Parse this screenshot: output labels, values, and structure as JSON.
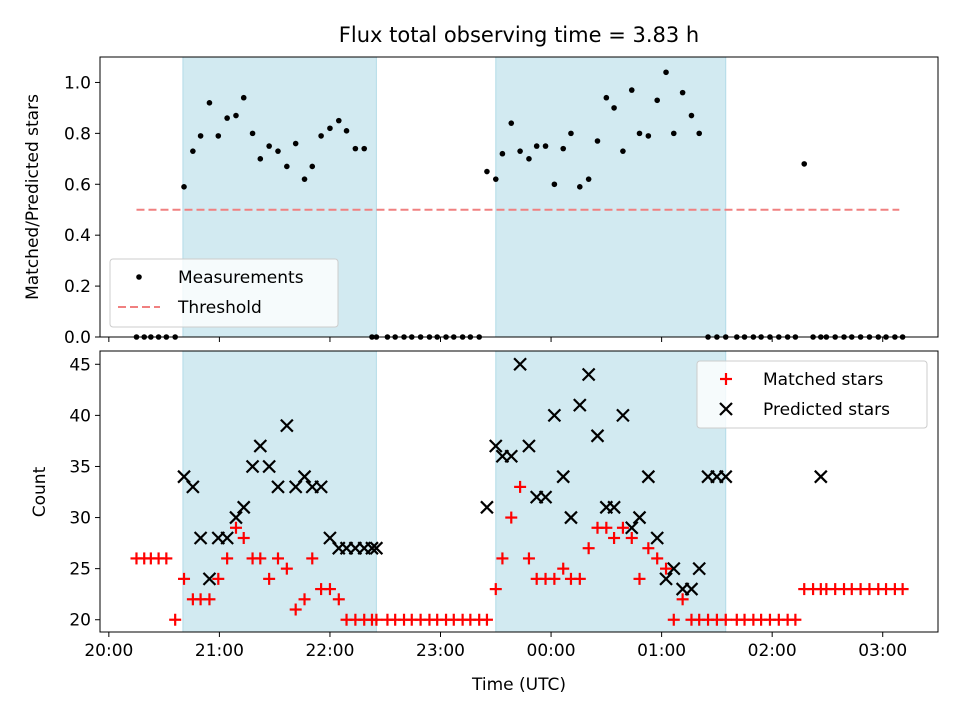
{
  "chart_data": {
    "title": "Flux total observing time = 3.83 h",
    "xlabel": "Time (UTC)",
    "x_tick_labels": [
      "20:00",
      "21:00",
      "22:00",
      "23:00",
      "00:00",
      "01:00",
      "02:00",
      "03:00"
    ],
    "x_tick_hours": [
      20,
      21,
      22,
      23,
      24,
      25,
      26,
      27
    ],
    "xlim_hours": [
      19.92,
      27.5
    ],
    "shaded_intervals_hours": [
      [
        20.67,
        22.42
      ],
      [
        23.5,
        25.58
      ]
    ],
    "shade_color": "#add8e6",
    "panels": [
      {
        "type": "scatter",
        "ylabel": "Matched/Predicted stars",
        "ylim": [
          0,
          1.1
        ],
        "yticks": [
          0.0,
          0.2,
          0.4,
          0.6,
          0.8,
          1.0
        ],
        "ytick_labels": [
          "0.0",
          "0.2",
          "0.4",
          "0.6",
          "0.8",
          "1.0"
        ],
        "legend": {
          "position": "lower-left",
          "entries": [
            {
              "label": "Measurements",
              "marker": "dot",
              "color": "#000000"
            },
            {
              "label": "Threshold",
              "marker": "dashed-line",
              "color": "#f08080"
            }
          ]
        },
        "threshold": {
          "value": 0.5,
          "x_range_hours": [
            20.25,
            27.15
          ],
          "color": "#f08080"
        },
        "series": [
          {
            "name": "Measurements",
            "color": "#000000",
            "x_hours": [
              20.25,
              20.32,
              20.38,
              20.45,
              20.52,
              20.6,
              20.68,
              20.76,
              20.83,
              20.91,
              20.99,
              21.07,
              21.15,
              21.22,
              21.3,
              21.37,
              21.45,
              21.53,
              21.61,
              21.69,
              21.77,
              21.84,
              21.92,
              22.0,
              22.08,
              22.15,
              22.23,
              22.31,
              22.38,
              22.42,
              22.52,
              22.59,
              22.67,
              22.74,
              22.82,
              22.9,
              22.97,
              23.05,
              23.12,
              23.2,
              23.27,
              23.35,
              23.42,
              23.5,
              23.56,
              23.64,
              23.72,
              23.8,
              23.87,
              23.95,
              24.03,
              24.11,
              24.18,
              24.26,
              24.34,
              24.42,
              24.5,
              24.57,
              24.65,
              24.73,
              24.8,
              24.88,
              24.96,
              25.04,
              25.11,
              25.19,
              25.27,
              25.34,
              25.42,
              25.5,
              25.58,
              25.68,
              25.75,
              25.83,
              25.9,
              25.98,
              26.06,
              26.14,
              26.21,
              26.29,
              26.37,
              26.44,
              26.49,
              26.57,
              26.65,
              26.72,
              26.8,
              26.88,
              26.96,
              27.03,
              27.11,
              27.18
            ],
            "y": [
              0,
              0,
              0,
              0,
              0,
              0,
              0.59,
              0.73,
              0.79,
              0.92,
              0.79,
              0.86,
              0.87,
              0.94,
              0.8,
              0.7,
              0.75,
              0.73,
              0.67,
              0.76,
              0.62,
              0.67,
              0.79,
              0.82,
              0.85,
              0.81,
              0.74,
              0.74,
              0,
              0,
              0,
              0,
              0,
              0,
              0,
              0,
              0,
              0,
              0,
              0,
              0,
              0,
              0.65,
              0.62,
              0.72,
              0.84,
              0.73,
              0.7,
              0.75,
              0.75,
              0.6,
              0.74,
              0.8,
              0.59,
              0.62,
              0.77,
              0.94,
              0.9,
              0.73,
              0.97,
              0.8,
              0.79,
              0.93,
              1.04,
              0.8,
              0.96,
              0.87,
              0.8,
              0,
              0,
              0,
              0,
              0,
              0,
              0,
              0,
              0,
              0,
              0,
              0.68,
              0,
              0,
              0,
              0,
              0,
              0,
              0,
              0,
              0,
              0,
              0,
              0
            ]
          }
        ]
      },
      {
        "type": "scatter",
        "ylabel": "Count",
        "ylim": [
          18.8,
          46.3
        ],
        "yticks": [
          20,
          25,
          30,
          35,
          40,
          45
        ],
        "ytick_labels": [
          "20",
          "25",
          "30",
          "35",
          "40",
          "45"
        ],
        "legend": {
          "position": "upper-right",
          "entries": [
            {
              "label": "Matched stars",
              "marker": "plus",
              "color": "#ff0000"
            },
            {
              "label": "Predicted stars",
              "marker": "x",
              "color": "#000000"
            }
          ]
        },
        "series": [
          {
            "name": "Matched stars",
            "marker": "plus",
            "color": "#ff0000",
            "x_hours": [
              20.25,
              20.32,
              20.38,
              20.45,
              20.52,
              20.6,
              20.68,
              20.76,
              20.83,
              20.91,
              20.99,
              21.07,
              21.15,
              21.22,
              21.3,
              21.37,
              21.45,
              21.53,
              21.61,
              21.69,
              21.77,
              21.84,
              21.92,
              22.0,
              22.08,
              22.15,
              22.23,
              22.31,
              22.38,
              22.42,
              22.52,
              22.59,
              22.67,
              22.74,
              22.82,
              22.9,
              22.97,
              23.05,
              23.12,
              23.2,
              23.27,
              23.35,
              23.42,
              23.5,
              23.56,
              23.64,
              23.72,
              23.8,
              23.87,
              23.95,
              24.03,
              24.11,
              24.18,
              24.26,
              24.34,
              24.42,
              24.5,
              24.57,
              24.65,
              24.73,
              24.8,
              24.88,
              24.96,
              25.04,
              25.11,
              25.19,
              25.27,
              25.34,
              25.42,
              25.5,
              25.58,
              25.68,
              25.75,
              25.83,
              25.9,
              25.98,
              26.06,
              26.14,
              26.21,
              26.29,
              26.37,
              26.44,
              26.49,
              26.57,
              26.65,
              26.72,
              26.8,
              26.88,
              26.96,
              27.03,
              27.11,
              27.18
            ],
            "y": [
              26,
              26,
              26,
              26,
              26,
              20,
              24,
              22,
              22,
              22,
              24,
              26,
              29,
              28,
              26,
              26,
              24,
              26,
              25,
              21,
              22,
              26,
              23,
              23,
              22,
              20,
              20,
              20,
              20,
              20,
              20,
              20,
              20,
              20,
              20,
              20,
              20,
              20,
              20,
              20,
              20,
              20,
              20,
              23,
              26,
              30,
              33,
              26,
              24,
              24,
              24,
              25,
              24,
              24,
              27,
              29,
              29,
              28,
              29,
              28,
              24,
              27,
              26,
              25,
              20,
              22,
              20,
              20,
              20,
              20,
              20,
              20,
              20,
              20,
              20,
              20,
              20,
              20,
              20,
              23,
              23,
              23,
              23,
              23,
              23,
              23,
              23,
              23,
              23,
              23,
              23,
              23
            ]
          },
          {
            "name": "Predicted stars",
            "marker": "x",
            "color": "#000000",
            "x_hours": [
              20.68,
              20.76,
              20.83,
              20.91,
              20.99,
              21.07,
              21.15,
              21.22,
              21.3,
              21.37,
              21.45,
              21.53,
              21.61,
              21.69,
              21.77,
              21.84,
              21.92,
              22.0,
              22.08,
              22.15,
              22.23,
              22.31,
              22.38,
              22.42,
              23.42,
              23.5,
              23.56,
              23.64,
              23.72,
              23.8,
              23.87,
              23.95,
              24.03,
              24.11,
              24.18,
              24.26,
              24.34,
              24.42,
              24.5,
              24.57,
              24.65,
              24.73,
              24.8,
              24.88,
              24.96,
              25.04,
              25.11,
              25.19,
              25.27,
              25.34,
              25.42,
              25.5,
              25.58,
              26.44
            ],
            "y": [
              34,
              33,
              28,
              24,
              28,
              28,
              30,
              31,
              35,
              37,
              35,
              33,
              39,
              33,
              34,
              33,
              33,
              28,
              27,
              27,
              27,
              27,
              27,
              27,
              31,
              37,
              36,
              36,
              45,
              37,
              32,
              32,
              40,
              34,
              30,
              41,
              44,
              38,
              31,
              31,
              40,
              29,
              30,
              34,
              28,
              24,
              25,
              23,
              23,
              25,
              34,
              34,
              34,
              34
            ]
          }
        ]
      }
    ]
  }
}
